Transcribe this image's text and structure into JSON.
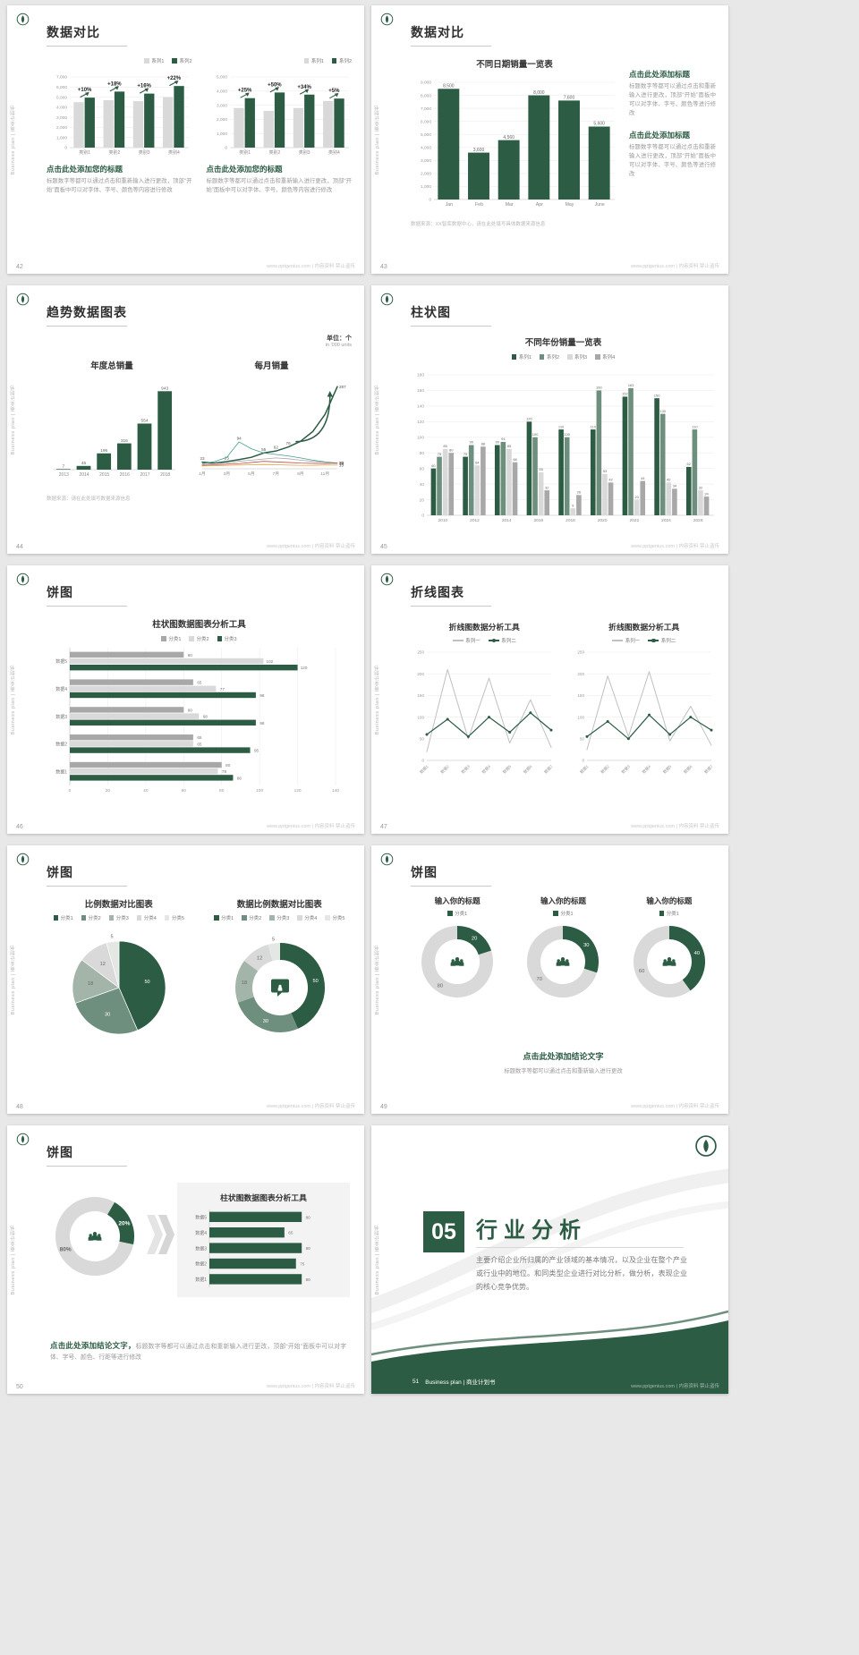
{
  "colors": {
    "green": "#2c5c44",
    "green2": "#6e8f7d",
    "sage": "#a3b5a9",
    "gray1": "#d9d9d9",
    "gray2": "#c0c0c0",
    "gray3": "#a8a8a8",
    "pale": "#e3e8e4",
    "teal": "#3fa08f",
    "red": "#c0504d",
    "orange": "#e2a13c"
  },
  "chrome": {
    "side_text": "Business plan | 商业计划书",
    "watermark": "www.pptgenius.com | 内容资料 禁止盗传"
  },
  "s42": {
    "page": "42",
    "title": "数据对比",
    "left": {
      "chart": {
        "type": "bar",
        "categories": [
          "类别1",
          "类别2",
          "类别3",
          "类别4"
        ],
        "series": [
          {
            "name": "系列1",
            "color": "gray1",
            "values": [
              4500,
              4700,
              4600,
              5000
            ]
          },
          {
            "name": "系列2",
            "color": "green",
            "values": [
              4950,
              5550,
              5350,
              6100
            ]
          }
        ],
        "ymax": 7000,
        "ystep": 1000,
        "annotations": [
          "+10%",
          "+18%",
          "+16%",
          "+22%"
        ]
      },
      "block_title": "点击此处添加您的标题",
      "block_body": "标题数字等都可以通过点击和重新输入进行更改，顶部“开始”面板中可以对字体、字号、颜色等内容进行修改"
    },
    "right": {
      "chart": {
        "type": "bar",
        "categories": [
          "类别1",
          "类别2",
          "类别3",
          "类别4"
        ],
        "series": [
          {
            "name": "系列1",
            "color": "gray1",
            "values": [
              2800,
              2600,
              2800,
              3300
            ]
          },
          {
            "name": "系列2",
            "color": "green",
            "values": [
              3500,
              3900,
              3750,
              3470
            ]
          }
        ],
        "ymax": 5000,
        "ystep": 1000,
        "annotations": [
          "+25%",
          "+50%",
          "+34%",
          "+5%"
        ]
      },
      "block_title": "点击此处添加您的标题",
      "block_body": "标题数字等都可以通过点击和重新输入进行更改，顶部“开始”面板中可以对字体、字号、颜色等内容进行修改"
    }
  },
  "s43": {
    "page": "43",
    "title": "数据对比",
    "chart_title": "不同日期销量一览表",
    "chart": {
      "type": "bar",
      "categories": [
        "Jan",
        "Feb",
        "Mar",
        "Apr",
        "May",
        "June"
      ],
      "series": [
        {
          "name": "销量",
          "color": "green",
          "values": [
            8500,
            3600,
            4560,
            8000,
            7600,
            5600
          ]
        }
      ],
      "ymax": 9000,
      "ystep": 1000,
      "labels": true,
      "labelSize": 5,
      "xSize": 5.2,
      "mT": 10
    },
    "footnote": "数据来源：XX智库数据中心，请在此处填写具体数据来源信息",
    "blocks": [
      {
        "title": "点击此处添加标题",
        "body": "标题数字等都可以通过点击和重新输入进行更改，顶部“开始”面板中可以对字体、字号、颜色等进行修改"
      },
      {
        "title": "点击此处添加标题",
        "body": "标题数字等都可以通过点击和重新输入进行更改，顶部“开始”面板中可以对字体、字号、颜色等进行修改"
      }
    ]
  },
  "s44": {
    "page": "44",
    "title": "趋势数据图表",
    "unit1": "单位：个",
    "unit2": "in '000 units",
    "left_title": "年度总销量",
    "right_title": "每月销量",
    "bar": {
      "type": "bar",
      "categories": [
        "2013",
        "2014",
        "2015",
        "2016",
        "2017",
        "2018"
      ],
      "series": [
        {
          "name": "年度总销量",
          "color": "green",
          "values": [
            7,
            45,
            196,
            316,
            554,
            943
          ]
        }
      ],
      "ymax": 1000,
      "ystep": 1000,
      "grid": false,
      "yticks": false,
      "labels": true,
      "labelSize": 4.8,
      "mL": 8,
      "mR": 2
    },
    "line": {
      "type": "line",
      "x": [
        "1月",
        "2月",
        "3月",
        "4月",
        "5月",
        "6月",
        "7月",
        "8月",
        "9月",
        "10月",
        "11月",
        "12月"
      ],
      "xshow": [
        0,
        2,
        4,
        6,
        8,
        10
      ],
      "ymax": 300,
      "mL": 12,
      "mR": 16,
      "mT": 8,
      "mB": 12,
      "series": [
        {
          "name": "系列1",
          "color": "green",
          "w": 1.5,
          "values": [
            23,
            20,
            25,
            32,
            40,
            55,
            62,
            76,
            96,
            130,
            190,
            287
          ],
          "labels": [
            [
              0,
              "23"
            ],
            [
              2,
              "25"
            ],
            [
              5,
              "55"
            ],
            [
              6,
              "62"
            ],
            [
              7,
              "76"
            ]
          ],
          "endLabel": "287"
        },
        {
          "name": "系列2",
          "color": "teal",
          "w": 0.8,
          "values": [
            18,
            25,
            40,
            94,
            70,
            55,
            50,
            45,
            38,
            30,
            24,
            20
          ],
          "labels": [
            [
              3,
              "94"
            ]
          ],
          "endLabel": "20"
        },
        {
          "name": "系列3",
          "color": "gray3",
          "w": 0.8,
          "values": [
            15,
            18,
            20,
            26,
            30,
            34,
            38,
            35,
            30,
            26,
            22,
            18
          ],
          "endLabel": "18"
        },
        {
          "name": "系列4",
          "color": "red",
          "w": 0.8,
          "values": [
            12,
            14,
            16,
            18,
            22,
            26,
            24,
            22,
            20,
            19,
            18,
            20
          ],
          "endLabel": "20"
        },
        {
          "name": "系列5",
          "color": "orange",
          "w": 0.8,
          "values": [
            10,
            11,
            12,
            13,
            14,
            15,
            14,
            13,
            12,
            12,
            13,
            13
          ],
          "endLabel": "13"
        }
      ],
      "arrow": {
        "from": [
          7.6,
          95
        ],
        "to": [
          10.4,
          258
        ]
      }
    },
    "footnote": "数据来源：请在此处填写数据来源信息"
  },
  "s45": {
    "page": "45",
    "title": "柱状图",
    "chart_title": "不同年份销量一览表",
    "chart": {
      "type": "bar",
      "categories": [
        "2010",
        "2012",
        "2014",
        "2016",
        "2018",
        "2020",
        "2022",
        "2024",
        "2026"
      ],
      "series": [
        {
          "name": "系列1",
          "color": "green",
          "values": [
            60,
            75,
            90,
            120,
            110,
            110,
            152,
            150,
            62
          ]
        },
        {
          "name": "系列2",
          "color": "green2",
          "values": [
            75,
            90,
            94,
            100,
            100,
            160,
            163,
            130,
            110
          ]
        },
        {
          "name": "系列3",
          "color": "gray1",
          "values": [
            85,
            64,
            85,
            55,
            9,
            53,
            20,
            42,
            32
          ]
        },
        {
          "name": "系列4",
          "color": "gray3",
          "values": [
            80,
            88,
            68,
            32,
            26,
            42,
            44,
            34,
            24
          ]
        }
      ],
      "ymax": 180,
      "ystep": 20,
      "labels": true,
      "labelSize": 4,
      "mL": 20,
      "xSize": 4.8
    }
  },
  "s46": {
    "page": "46",
    "title": "饼图",
    "chart_title": "柱状图数据图表分析工具",
    "chart": {
      "type": "hbar",
      "legendNames": [
        "分类1",
        "分类2",
        "分类3"
      ],
      "colors": [
        "gray3",
        "gray1",
        "green"
      ],
      "rows": [
        {
          "label": "数据5",
          "values": [
            60,
            102,
            120
          ]
        },
        {
          "label": "数据4",
          "values": [
            65,
            77,
            98
          ]
        },
        {
          "label": "数据3",
          "values": [
            60,
            68,
            98
          ]
        },
        {
          "label": "数据2",
          "values": [
            65,
            65,
            95
          ]
        },
        {
          "label": "数据1",
          "values": [
            80,
            78,
            86
          ]
        }
      ],
      "xmax": 140,
      "xstep": 20,
      "mL": 24
    }
  },
  "s47": {
    "page": "47",
    "title": "折线图表",
    "left": {
      "title": "折线图数据分析工具",
      "chart": {
        "type": "line",
        "x": [
          "数据1",
          "数据2",
          "数据3",
          "数据4",
          "数据5",
          "数据6",
          "数据7"
        ],
        "rotX": true,
        "ymax": 250,
        "ystep": 50,
        "mB": 17,
        "mL": 16,
        "mR": 6,
        "series": [
          {
            "name": "系列一",
            "color": "gray2",
            "w": 1,
            "values": [
              20,
              210,
              50,
              190,
              40,
              140,
              30
            ]
          },
          {
            "name": "系列二",
            "color": "green",
            "w": 1.2,
            "marker": true,
            "values": [
              60,
              95,
              55,
              100,
              65,
              110,
              70
            ]
          }
        ]
      }
    },
    "right": {
      "title": "折线图数据分析工具",
      "chart": {
        "type": "line",
        "x": [
          "数据1",
          "数据2",
          "数据3",
          "数据4",
          "数据5",
          "数据6",
          "数据7"
        ],
        "rotX": true,
        "ymax": 250,
        "ystep": 50,
        "mB": 17,
        "mL": 16,
        "mR": 6,
        "series": [
          {
            "name": "系列一",
            "color": "gray2",
            "w": 1,
            "values": [
              25,
              195,
              55,
              205,
              45,
              125,
              35
            ]
          },
          {
            "name": "系列二",
            "color": "green",
            "w": 1.2,
            "marker": true,
            "values": [
              55,
              90,
              50,
              105,
              60,
              100,
              70
            ]
          }
        ]
      }
    }
  },
  "s48": {
    "page": "48",
    "title": "饼图",
    "left": {
      "title": "比例数据对比图表",
      "chart": {
        "type": "pie",
        "legendNames": [
          "分类1",
          "分类2",
          "分类3",
          "分类4",
          "分类5"
        ],
        "colors": [
          "green",
          "green2",
          "sage",
          "gray1",
          "pale"
        ],
        "values": [
          50,
          30,
          18,
          12,
          5
        ],
        "r": 52
      }
    },
    "right": {
      "title": "数据比例数据对比图表",
      "chart": {
        "type": "donut",
        "legendNames": [
          "分类1",
          "分类2",
          "分类3",
          "分类4",
          "分类5"
        ],
        "colors": [
          "green",
          "green2",
          "sage",
          "gray1",
          "pale"
        ],
        "values": [
          50,
          30,
          18,
          12,
          5
        ],
        "r": 50,
        "th": 19,
        "icon": "chat"
      }
    }
  },
  "s49": {
    "page": "49",
    "title": "饼图",
    "items": [
      {
        "title": "输入你的标题",
        "chart": {
          "type": "donut",
          "legendNames": [
            "分类1"
          ],
          "colors": [
            "green",
            "gray1"
          ],
          "values": [
            20,
            80
          ],
          "th": 15,
          "icon": "people",
          "labelSize": 5.8
        }
      },
      {
        "title": "输入你的标题",
        "chart": {
          "type": "donut",
          "legendNames": [
            "分类1"
          ],
          "colors": [
            "green",
            "gray1"
          ],
          "values": [
            30,
            70
          ],
          "th": 15,
          "icon": "people",
          "labelSize": 5.8
        }
      },
      {
        "title": "输入你的标题",
        "chart": {
          "type": "donut",
          "legendNames": [
            "分类1"
          ],
          "colors": [
            "green",
            "gray1"
          ],
          "values": [
            40,
            60
          ],
          "th": 15,
          "icon": "people",
          "labelSize": 5.8
        }
      }
    ],
    "conclusion_title": "点击此处添加结论文字",
    "conclusion_body": "标题数字等都可以通过点击和重新输入进行更改"
  },
  "s50": {
    "page": "50",
    "title": "饼图",
    "donut": {
      "type": "donut",
      "colors": [
        "green",
        "gray1"
      ],
      "values": [
        20,
        80
      ],
      "labels": [
        "20%",
        "80%"
      ],
      "start": 30,
      "th": 16,
      "icon": "people",
      "bold": true,
      "labelSize": 6.5
    },
    "panel_title": "柱状图数据图表分析工具",
    "hbar": {
      "type": "hbar",
      "colors": [
        "green"
      ],
      "rows": [
        {
          "label": "数据5",
          "values": [
            80
          ]
        },
        {
          "label": "数据4",
          "values": [
            65
          ]
        },
        {
          "label": "数据3",
          "values": [
            80
          ]
        },
        {
          "label": "数据2",
          "values": [
            75
          ]
        },
        {
          "label": "数据1",
          "values": [
            80
          ]
        }
      ],
      "xmax": 100,
      "xstep": 20,
      "xticks": false,
      "mL": 22,
      "mR": 14
    },
    "conclusion_title": "点击此处添加结论文字，",
    "conclusion_body": "标题数字等都可以通过点击和重新输入进行更改，顶部“开始”面板中可以对字体、字号、颜色、行距等进行修改"
  },
  "s51": {
    "page": "51",
    "number": "05",
    "heading": "行业分析",
    "body": "主要介绍企业所归属的产业领域的基本情况，以及企业在整个产业或行业中的地位。和同类型企业进行对比分析，做分析，表现企业的核心竞争优势。",
    "band_label": "Business plan | 商业计划书"
  }
}
